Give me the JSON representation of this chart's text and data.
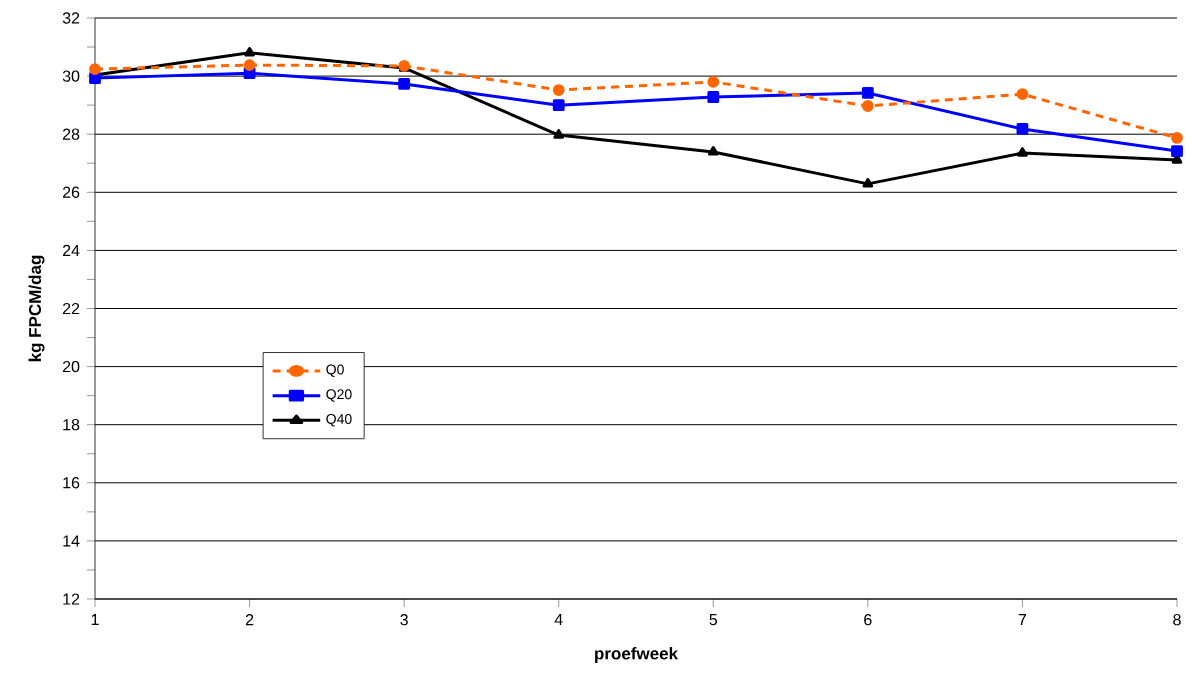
{
  "chart_data": {
    "type": "line",
    "xlabel": "proefweek",
    "ylabel": "kg FPCM/dag",
    "x": [
      1,
      2,
      3,
      4,
      5,
      6,
      7,
      8
    ],
    "series": [
      {
        "name": "Q0",
        "color": "#ff6600",
        "line_style": "dashed",
        "marker": "circle",
        "values": [
          30.24,
          30.38,
          30.35,
          29.52,
          29.8,
          28.97,
          29.38,
          27.87
        ]
      },
      {
        "name": "Q20",
        "color": "#0000ff",
        "line_style": "solid",
        "marker": "square",
        "values": [
          29.93,
          30.1,
          29.73,
          29.0,
          29.28,
          29.42,
          28.18,
          27.42
        ]
      },
      {
        "name": "Q40",
        "color": "#000000",
        "line_style": "solid",
        "marker": "triangle",
        "values": [
          30.04,
          30.8,
          30.28,
          27.97,
          27.39,
          26.29,
          27.35,
          27.11
        ]
      }
    ],
    "xlim": [
      1,
      8
    ],
    "xticks": [
      1,
      2,
      3,
      4,
      5,
      6,
      7,
      8
    ],
    "ylim": [
      12,
      32
    ],
    "yticks": [
      12,
      14,
      16,
      18,
      20,
      22,
      24,
      26,
      28,
      30,
      32
    ],
    "grid": "y",
    "legend": "left"
  }
}
